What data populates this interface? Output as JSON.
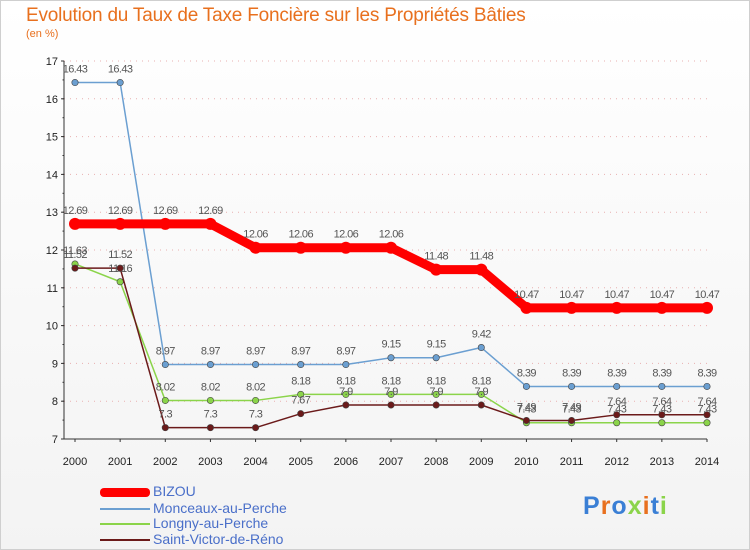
{
  "title": "Evolution du Taux de Taxe Foncière sur les Propriétés Bâties",
  "subtitle": "(en %)",
  "logo": "Proxiti",
  "chart_data": {
    "type": "line",
    "title": "Evolution du Taux de Taxe Foncière sur les Propriétés Bâties",
    "ylabel": "(en %)",
    "categories": [
      "2000",
      "2001",
      "2002",
      "2003",
      "2004",
      "2005",
      "2006",
      "2007",
      "2008",
      "2009",
      "2010",
      "2011",
      "2012",
      "2013",
      "2014"
    ],
    "yticks": [
      7,
      8,
      9,
      10,
      11,
      12,
      13,
      14,
      15,
      16,
      17
    ],
    "ylim": [
      7,
      17
    ],
    "legend_position": "bottom-left",
    "series": [
      {
        "name": "BIZOU",
        "color": "#ff0000",
        "values": [
          12.69,
          12.69,
          12.69,
          12.69,
          12.06,
          12.06,
          12.06,
          12.06,
          11.48,
          11.48,
          10.47,
          10.47,
          10.47,
          10.47,
          10.47
        ],
        "labels": [
          "12.69",
          "12.69",
          "12.69",
          "12.69",
          "12.06",
          "12.06",
          "12.06",
          "12.06",
          "11.48",
          "11.48",
          "10.47",
          "10.47",
          "10.47",
          "10.47",
          "10.47"
        ]
      },
      {
        "name": "Monceaux-au-Perche",
        "color": "#6b9fd1",
        "values": [
          16.43,
          16.43,
          8.97,
          8.97,
          8.97,
          8.97,
          8.97,
          9.15,
          9.15,
          9.42,
          8.39,
          8.39,
          8.39,
          8.39,
          8.39
        ],
        "labels": [
          "16.43",
          "16.43",
          "8.97",
          "8.97",
          "8.97",
          "8.97",
          "8.97",
          "9.15",
          "9.15",
          "9.42",
          "8.39",
          "8.39",
          "8.39",
          "8.39",
          "8.39"
        ]
      },
      {
        "name": "Longny-au-Perche",
        "color": "#8bd44a",
        "values": [
          11.63,
          11.16,
          8.02,
          8.02,
          8.02,
          8.18,
          8.18,
          8.18,
          8.18,
          8.18,
          7.43,
          7.43,
          7.43,
          7.43,
          7.43
        ],
        "labels": [
          "11.63",
          "11.16",
          "8.02",
          "8.02",
          "8.02",
          "8.18",
          "8.18",
          "8.18",
          "8.18",
          "8.18",
          "7.43",
          "7.43",
          "7.43",
          "7.43",
          "7.43"
        ]
      },
      {
        "name": "Saint-Victor-de-Réno",
        "color": "#6b1a1a",
        "values": [
          11.52,
          11.52,
          7.3,
          7.3,
          7.3,
          7.67,
          7.9,
          7.9,
          7.9,
          7.9,
          7.49,
          7.49,
          7.64,
          7.64,
          7.64
        ],
        "labels": [
          "11.52",
          "11.52",
          "7.3",
          "7.3",
          "7.3",
          "7.67",
          "7.9",
          "7.9",
          "7.9",
          "7.9",
          "7.49",
          "7.49",
          "7.64",
          "7.64",
          "7.64"
        ]
      }
    ]
  }
}
